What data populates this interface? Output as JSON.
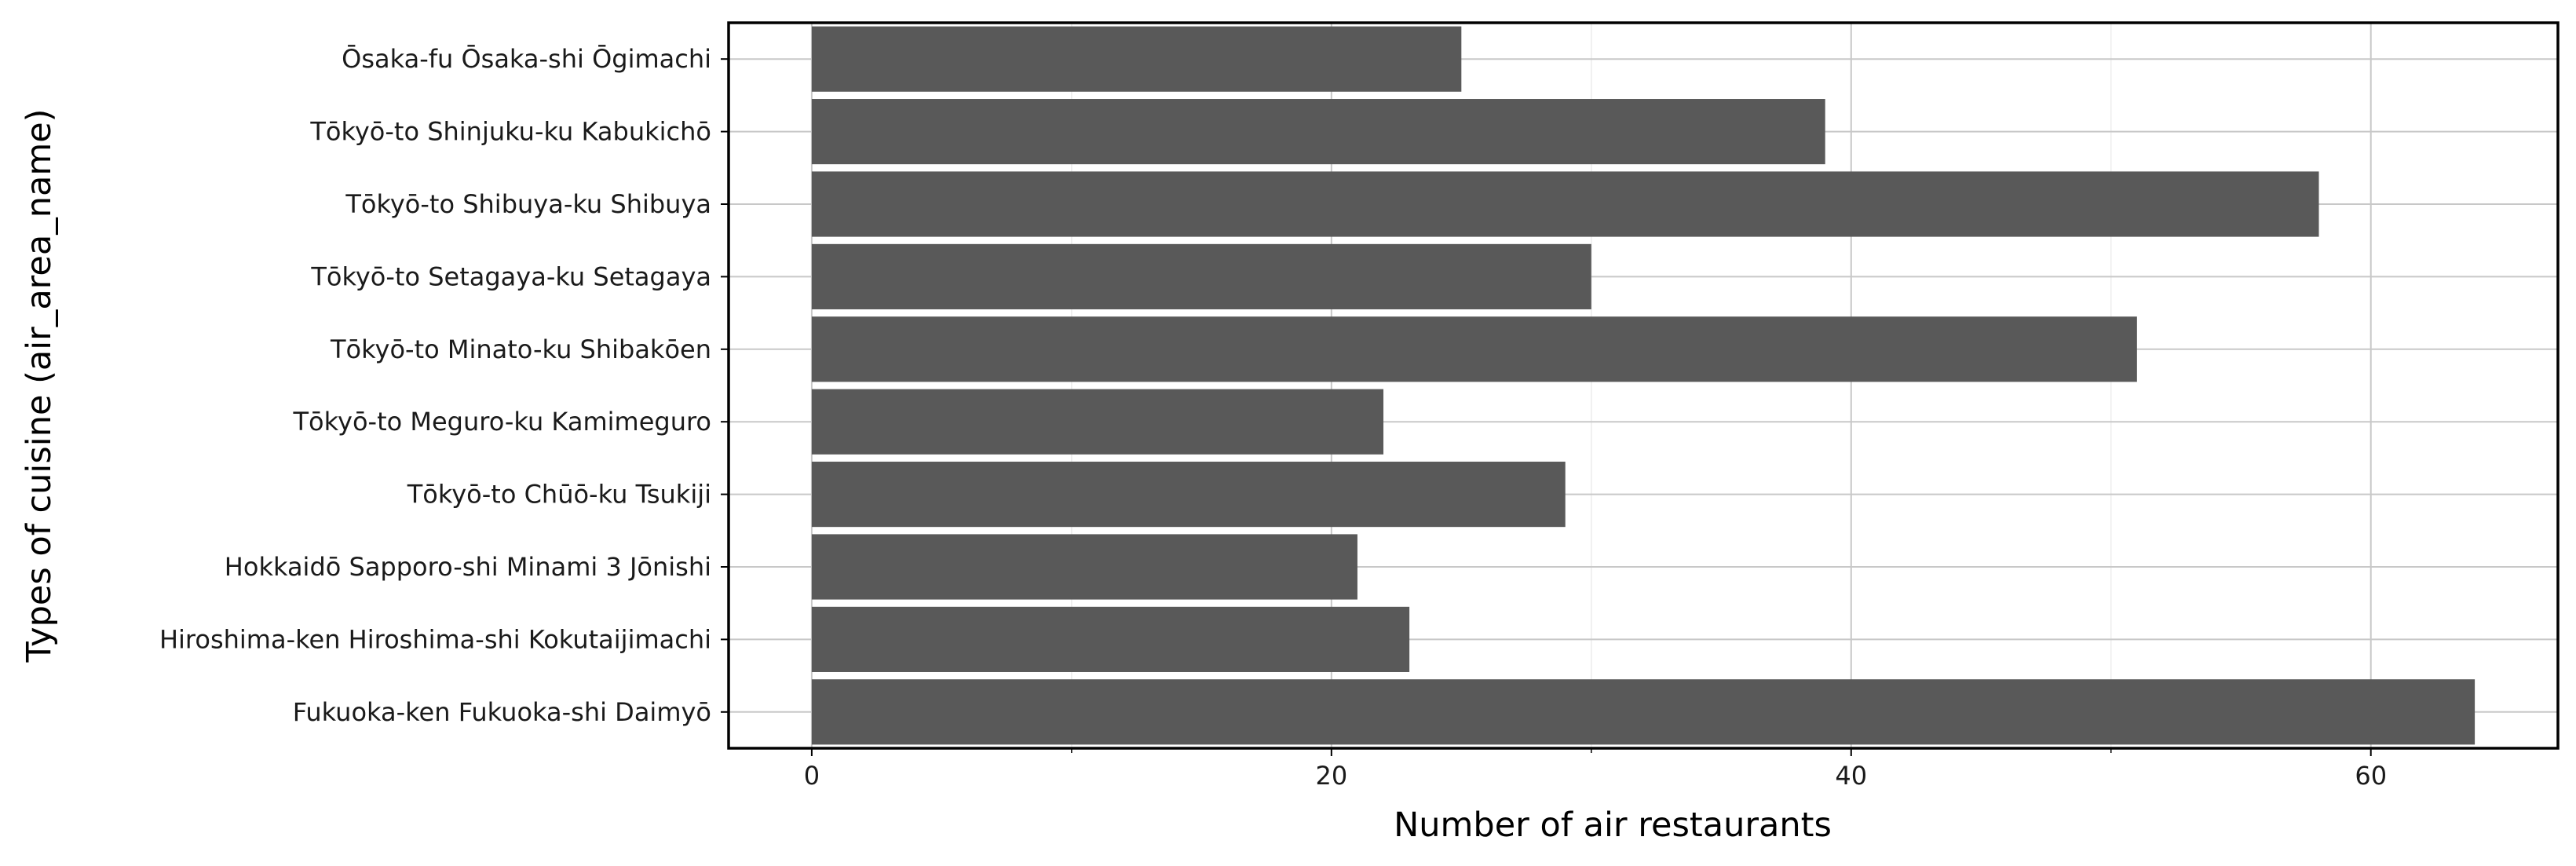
{
  "chart_data": {
    "type": "bar",
    "orientation": "horizontal",
    "title": "",
    "xlabel": "Number of air restaurants",
    "ylabel": "Types of cuisine (air_area_name)",
    "categories": [
      "Ōsaka-fu Ōsaka-shi Ōgimachi",
      "Tōkyō-to Shinjuku-ku Kabukichō",
      "Tōkyō-to Shibuya-ku Shibuya",
      "Tōkyō-to Setagaya-ku Setagaya",
      "Tōkyō-to Minato-ku Shibakōen",
      "Tōkyō-to Meguro-ku Kamimeguro",
      "Tōkyō-to Chūō-ku Tsukiji",
      "Hokkaidō Sapporo-shi Minami 3 Jōnishi",
      "Hiroshima-ken Hiroshima-shi Kokutaijimachi",
      "Fukuoka-ken Fukuoka-shi Daimyō"
    ],
    "values": [
      25,
      39,
      58,
      30,
      51,
      22,
      29,
      21,
      23,
      64
    ],
    "xlim": [
      -3.2,
      67.2
    ],
    "xticks": [
      0,
      20,
      40,
      60
    ],
    "xtick_labels": [
      "0",
      "20",
      "40",
      "60"
    ],
    "grid": true,
    "legend": false,
    "colors": {
      "bar": "#595959",
      "panel_border": "#000000",
      "grid_major": "#c8c8c8",
      "grid_minor": "#ececec",
      "background": "#ffffff"
    }
  }
}
